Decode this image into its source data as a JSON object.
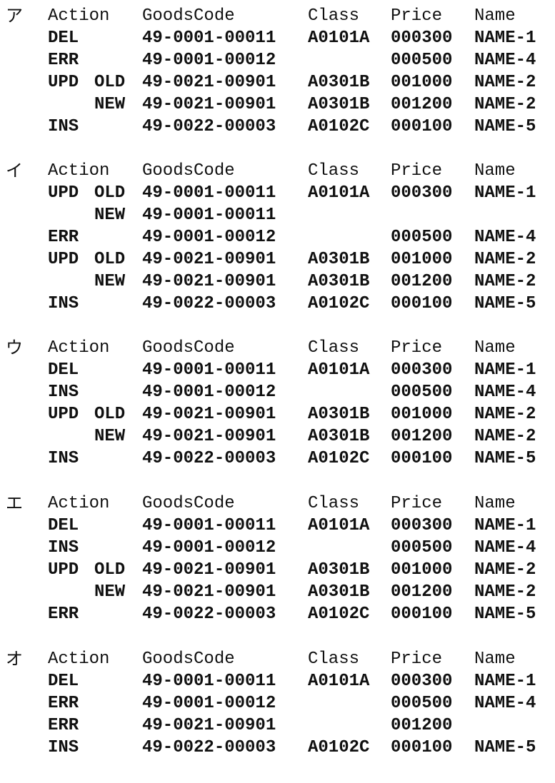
{
  "headers": {
    "action": "Action",
    "goods_code": "GoodsCode",
    "class": "Class",
    "price": "Price",
    "name": "Name"
  },
  "blocks": [
    {
      "label": "ア",
      "rows": [
        {
          "action": "DEL",
          "sub": "",
          "code": "49-0001-00011",
          "class": "A0101A",
          "price": "000300",
          "name": "NAME-1"
        },
        {
          "action": "ERR",
          "sub": "",
          "code": "49-0001-00012",
          "class": "",
          "price": "000500",
          "name": "NAME-4"
        },
        {
          "action": "UPD",
          "sub": "OLD",
          "code": "49-0021-00901",
          "class": "A0301B",
          "price": "001000",
          "name": "NAME-2"
        },
        {
          "action": "",
          "sub": "NEW",
          "code": "49-0021-00901",
          "class": "A0301B",
          "price": "001200",
          "name": "NAME-2"
        },
        {
          "action": "INS",
          "sub": "",
          "code": "49-0022-00003",
          "class": "A0102C",
          "price": "000100",
          "name": "NAME-5"
        }
      ]
    },
    {
      "label": "イ",
      "rows": [
        {
          "action": "UPD",
          "sub": "OLD",
          "code": "49-0001-00011",
          "class": "A0101A",
          "price": "000300",
          "name": "NAME-1"
        },
        {
          "action": "",
          "sub": "NEW",
          "code": "49-0001-00011",
          "class": "",
          "price": "",
          "name": ""
        },
        {
          "action": "ERR",
          "sub": "",
          "code": "49-0001-00012",
          "class": "",
          "price": "000500",
          "name": "NAME-4"
        },
        {
          "action": "UPD",
          "sub": "OLD",
          "code": "49-0021-00901",
          "class": "A0301B",
          "price": "001000",
          "name": "NAME-2"
        },
        {
          "action": "",
          "sub": "NEW",
          "code": "49-0021-00901",
          "class": "A0301B",
          "price": "001200",
          "name": "NAME-2"
        },
        {
          "action": "INS",
          "sub": "",
          "code": "49-0022-00003",
          "class": "A0102C",
          "price": "000100",
          "name": "NAME-5"
        }
      ]
    },
    {
      "label": "ウ",
      "rows": [
        {
          "action": "DEL",
          "sub": "",
          "code": "49-0001-00011",
          "class": "A0101A",
          "price": "000300",
          "name": "NAME-1"
        },
        {
          "action": "INS",
          "sub": "",
          "code": "49-0001-00012",
          "class": "",
          "price": "000500",
          "name": "NAME-4"
        },
        {
          "action": "UPD",
          "sub": "OLD",
          "code": "49-0021-00901",
          "class": "A0301B",
          "price": "001000",
          "name": "NAME-2"
        },
        {
          "action": "",
          "sub": "NEW",
          "code": "49-0021-00901",
          "class": "A0301B",
          "price": "001200",
          "name": "NAME-2"
        },
        {
          "action": "INS",
          "sub": "",
          "code": "49-0022-00003",
          "class": "A0102C",
          "price": "000100",
          "name": "NAME-5"
        }
      ]
    },
    {
      "label": "エ",
      "rows": [
        {
          "action": "DEL",
          "sub": "",
          "code": "49-0001-00011",
          "class": "A0101A",
          "price": "000300",
          "name": "NAME-1"
        },
        {
          "action": "INS",
          "sub": "",
          "code": "49-0001-00012",
          "class": "",
          "price": "000500",
          "name": "NAME-4"
        },
        {
          "action": "UPD",
          "sub": "OLD",
          "code": "49-0021-00901",
          "class": "A0301B",
          "price": "001000",
          "name": "NAME-2"
        },
        {
          "action": "",
          "sub": "NEW",
          "code": "49-0021-00901",
          "class": "A0301B",
          "price": "001200",
          "name": "NAME-2"
        },
        {
          "action": "ERR",
          "sub": "",
          "code": "49-0022-00003",
          "class": "A0102C",
          "price": "000100",
          "name": "NAME-5"
        }
      ]
    },
    {
      "label": "オ",
      "rows": [
        {
          "action": "DEL",
          "sub": "",
          "code": "49-0001-00011",
          "class": "A0101A",
          "price": "000300",
          "name": "NAME-1"
        },
        {
          "action": "ERR",
          "sub": "",
          "code": "49-0001-00012",
          "class": "",
          "price": "000500",
          "name": "NAME-4"
        },
        {
          "action": "ERR",
          "sub": "",
          "code": "49-0021-00901",
          "class": "",
          "price": "001200",
          "name": ""
        },
        {
          "action": "INS",
          "sub": "",
          "code": "49-0022-00003",
          "class": "A0102C",
          "price": "000100",
          "name": "NAME-5"
        }
      ]
    }
  ]
}
